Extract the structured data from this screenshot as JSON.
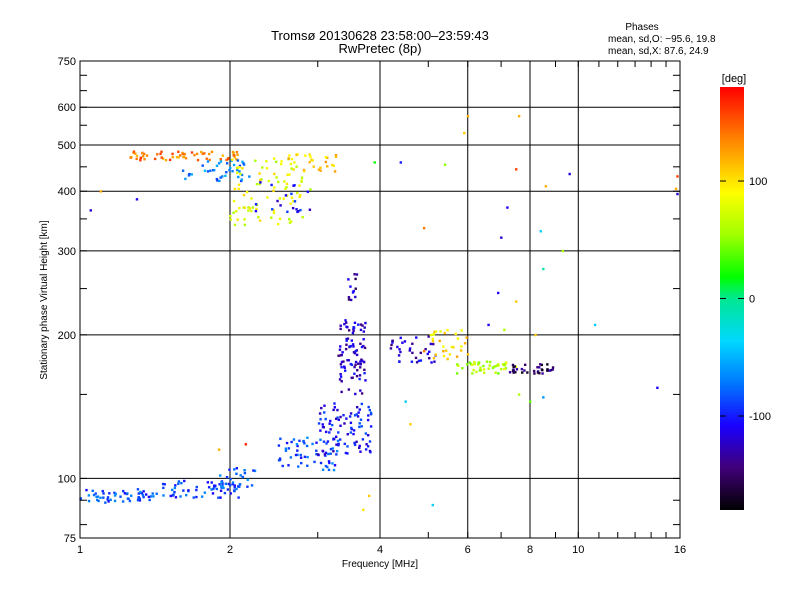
{
  "chart_data": {
    "type": "scatter",
    "title": "Tromsø 20130628 23:58:00–23:59:43",
    "subtitle": "RwPretec (8p)",
    "xlabel": "Frequency [MHz]",
    "ylabel": "Stationary phase Virtual Height [km]",
    "x_scale": "log",
    "y_scale": "log",
    "xlim": [
      1,
      16
    ],
    "ylim": [
      75,
      750
    ],
    "x_ticks": [
      1,
      2,
      4,
      6,
      8,
      10,
      16
    ],
    "y_ticks": [
      75,
      100,
      200,
      300,
      400,
      500,
      600,
      750
    ],
    "x_gridlines": [
      2,
      4,
      6,
      8,
      10
    ],
    "y_gridlines": [
      100,
      200,
      300,
      400,
      500,
      600
    ],
    "phases_box": {
      "heading": "Phases",
      "line1": "mean, sd,O: −95.6, 19.8",
      "line2": "mean, sd,X:  87.6, 24.9"
    },
    "colorbar": {
      "label": "[deg]",
      "range": [
        -180,
        180
      ],
      "ticks": [
        100,
        0,
        -100
      ]
    },
    "clusters": [
      {
        "x_range": [
          1.0,
          1.4
        ],
        "y_range": [
          89,
          95
        ],
        "phase": -85,
        "n": 55
      },
      {
        "x_range": [
          1.4,
          2.1
        ],
        "y_range": [
          91,
          99
        ],
        "phase": -90,
        "n": 60
      },
      {
        "x_range": [
          1.9,
          2.25
        ],
        "y_range": [
          96,
          106
        ],
        "phase": -80,
        "n": 25
      },
      {
        "x_range": [
          2.5,
          3.3
        ],
        "y_range": [
          104,
          122
        ],
        "phase": -85,
        "n": 60
      },
      {
        "x_range": [
          3.0,
          3.9
        ],
        "y_range": [
          112,
          145
        ],
        "phase": -105,
        "n": 90
      },
      {
        "x_range": [
          3.3,
          3.75
        ],
        "y_range": [
          150,
          215
        ],
        "phase": -120,
        "n": 90
      },
      {
        "x_range": [
          3.45,
          3.6
        ],
        "y_range": [
          235,
          280
        ],
        "phase": -130,
        "n": 12
      },
      {
        "x_range": [
          4.2,
          5.2
        ],
        "y_range": [
          175,
          200
        ],
        "phase": -120,
        "n": 35
      },
      {
        "x_range": [
          5.0,
          6.0
        ],
        "y_range": [
          178,
          205
        ],
        "phase": 100,
        "n": 30
      },
      {
        "x_range": [
          5.7,
          7.5
        ],
        "y_range": [
          166,
          176
        ],
        "phase": 60,
        "n": 45
      },
      {
        "x_range": [
          7.2,
          8.9
        ],
        "y_range": [
          166,
          174
        ],
        "phase": -150,
        "n": 35
      },
      {
        "x_range": [
          1.25,
          2.1
        ],
        "y_range": [
          465,
          485
        ],
        "phase": 140,
        "n": 60
      },
      {
        "x_range": [
          1.6,
          2.2
        ],
        "y_range": [
          420,
          465
        ],
        "phase": -70,
        "n": 40
      },
      {
        "x_range": [
          2.0,
          2.9
        ],
        "y_range": [
          340,
          470
        ],
        "phase": 80,
        "n": 90
      },
      {
        "x_range": [
          2.6,
          3.3
        ],
        "y_range": [
          440,
          480
        ],
        "phase": 110,
        "n": 25
      },
      {
        "x_range": [
          2.2,
          2.9
        ],
        "y_range": [
          360,
          420
        ],
        "phase": -110,
        "n": 20
      }
    ],
    "scattered_points": [
      {
        "x": 1.05,
        "y": 365,
        "phase": -120
      },
      {
        "x": 1.1,
        "y": 400,
        "phase": 120
      },
      {
        "x": 1.3,
        "y": 385,
        "phase": -110
      },
      {
        "x": 3.9,
        "y": 460,
        "phase": 20
      },
      {
        "x": 4.4,
        "y": 460,
        "phase": -100
      },
      {
        "x": 5.4,
        "y": 455,
        "phase": 50
      },
      {
        "x": 4.9,
        "y": 335,
        "phase": 140
      },
      {
        "x": 6.0,
        "y": 575,
        "phase": 120
      },
      {
        "x": 5.9,
        "y": 530,
        "phase": 110
      },
      {
        "x": 7.6,
        "y": 575,
        "phase": 120
      },
      {
        "x": 7.2,
        "y": 370,
        "phase": -110
      },
      {
        "x": 7.0,
        "y": 320,
        "phase": -120
      },
      {
        "x": 7.5,
        "y": 445,
        "phase": 160
      },
      {
        "x": 8.6,
        "y": 410,
        "phase": 120
      },
      {
        "x": 9.3,
        "y": 300,
        "phase": 60
      },
      {
        "x": 9.6,
        "y": 435,
        "phase": -120
      },
      {
        "x": 8.4,
        "y": 330,
        "phase": -40
      },
      {
        "x": 8.5,
        "y": 275,
        "phase": -10
      },
      {
        "x": 8.2,
        "y": 200,
        "phase": 110
      },
      {
        "x": 6.9,
        "y": 245,
        "phase": -110
      },
      {
        "x": 7.5,
        "y": 235,
        "phase": 110
      },
      {
        "x": 6.6,
        "y": 210,
        "phase": -110
      },
      {
        "x": 7.1,
        "y": 205,
        "phase": 60
      },
      {
        "x": 10.8,
        "y": 210,
        "phase": -40
      },
      {
        "x": 14.4,
        "y": 155,
        "phase": -110
      },
      {
        "x": 15.8,
        "y": 430,
        "phase": 160
      },
      {
        "x": 15.8,
        "y": 395,
        "phase": -120
      },
      {
        "x": 15.7,
        "y": 405,
        "phase": 120
      },
      {
        "x": 4.6,
        "y": 130,
        "phase": 110
      },
      {
        "x": 4.5,
        "y": 145,
        "phase": -40
      },
      {
        "x": 4.9,
        "y": 185,
        "phase": 140
      },
      {
        "x": 5.1,
        "y": 88,
        "phase": -40
      },
      {
        "x": 3.8,
        "y": 92,
        "phase": 110
      },
      {
        "x": 3.7,
        "y": 86,
        "phase": 100
      },
      {
        "x": 2.15,
        "y": 118,
        "phase": 170
      },
      {
        "x": 1.9,
        "y": 115,
        "phase": 120
      },
      {
        "x": 7.6,
        "y": 150,
        "phase": 60
      },
      {
        "x": 8.5,
        "y": 148,
        "phase": -60
      },
      {
        "x": 8.0,
        "y": 145,
        "phase": 40
      }
    ]
  }
}
